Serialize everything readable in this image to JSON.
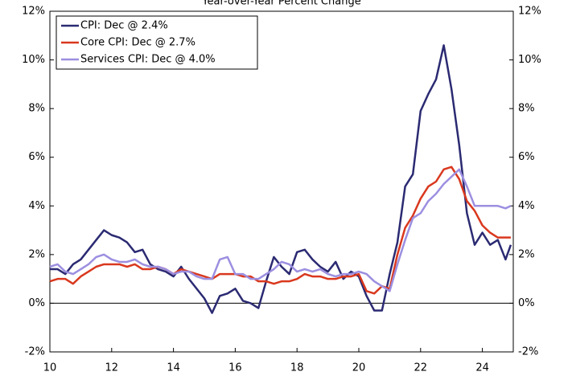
{
  "chart_data": {
    "type": "line",
    "title": "Year-over-Year Percent Change",
    "x": [
      10,
      10.25,
      10.5,
      10.75,
      11,
      11.25,
      11.5,
      11.75,
      12,
      12.25,
      12.5,
      12.75,
      13,
      13.25,
      13.5,
      13.75,
      14,
      14.25,
      14.5,
      14.75,
      15,
      15.25,
      15.5,
      15.75,
      16,
      16.25,
      16.5,
      16.75,
      17,
      17.25,
      17.5,
      17.75,
      18,
      18.25,
      18.5,
      18.75,
      19,
      19.25,
      19.5,
      19.75,
      20,
      20.25,
      20.5,
      20.75,
      21,
      21.25,
      21.5,
      21.75,
      22,
      22.25,
      22.5,
      22.75,
      23,
      23.25,
      23.5,
      23.75,
      24,
      24.25,
      24.5,
      24.75,
      24.92
    ],
    "series": [
      {
        "name": "CPI: Dec @ 2.4%",
        "color": "#2b2a72",
        "values": [
          1.4,
          1.4,
          1.2,
          1.6,
          1.8,
          2.2,
          2.6,
          3.0,
          2.8,
          2.7,
          2.5,
          2.1,
          2.2,
          1.6,
          1.4,
          1.3,
          1.1,
          1.5,
          1.0,
          0.6,
          0.2,
          -0.4,
          0.3,
          0.4,
          0.6,
          0.1,
          0.0,
          -0.2,
          0.9,
          1.9,
          1.5,
          1.2,
          2.1,
          2.2,
          1.8,
          1.5,
          1.3,
          1.7,
          1.0,
          1.3,
          1.1,
          0.3,
          -0.3,
          -0.3,
          1.2,
          2.5,
          4.8,
          5.3,
          7.9,
          8.6,
          9.2,
          10.6,
          8.8,
          6.5,
          3.7,
          2.4,
          2.9,
          2.4,
          2.6,
          1.8,
          2.4
        ]
      },
      {
        "name": "Core CPI: Dec @ 2.7%",
        "color": "#d9381e",
        "values": [
          0.9,
          1.0,
          1.0,
          0.8,
          1.1,
          1.3,
          1.5,
          1.6,
          1.6,
          1.6,
          1.5,
          1.6,
          1.4,
          1.4,
          1.5,
          1.4,
          1.2,
          1.4,
          1.3,
          1.2,
          1.1,
          1.0,
          1.2,
          1.2,
          1.2,
          1.1,
          1.1,
          0.9,
          0.9,
          0.8,
          0.9,
          0.9,
          1.0,
          1.2,
          1.1,
          1.1,
          1.0,
          1.0,
          1.1,
          1.1,
          1.2,
          0.5,
          0.4,
          0.7,
          0.6,
          2.0,
          3.1,
          3.6,
          4.3,
          4.8,
          5.0,
          5.5,
          5.6,
          5.1,
          4.2,
          3.8,
          3.2,
          2.9,
          2.7,
          2.7,
          2.7
        ]
      },
      {
        "name": "Services CPI: Dec @ 4.0%",
        "color": "#9c8fe0",
        "values": [
          1.5,
          1.6,
          1.3,
          1.2,
          1.4,
          1.6,
          1.9,
          2.0,
          1.8,
          1.7,
          1.7,
          1.8,
          1.6,
          1.5,
          1.5,
          1.4,
          1.2,
          1.3,
          1.3,
          1.1,
          1.0,
          1.0,
          1.8,
          1.9,
          1.2,
          1.2,
          1.0,
          1.0,
          1.2,
          1.4,
          1.7,
          1.6,
          1.3,
          1.4,
          1.3,
          1.4,
          1.2,
          1.1,
          1.2,
          1.2,
          1.3,
          1.2,
          0.9,
          0.7,
          0.5,
          1.6,
          2.6,
          3.5,
          3.7,
          4.2,
          4.5,
          4.9,
          5.2,
          5.5,
          4.8,
          4.0,
          4.0,
          4.0,
          4.0,
          3.9,
          4.0
        ]
      }
    ],
    "xlim": [
      10,
      25
    ],
    "xticks": [
      10,
      12,
      14,
      16,
      18,
      20,
      22,
      24
    ],
    "ylim": [
      -2,
      12
    ],
    "yticks": [
      {
        "value": -2,
        "label": "-2%"
      },
      {
        "value": 0,
        "label": "0%"
      },
      {
        "value": 2,
        "label": "2%"
      },
      {
        "value": 4,
        "label": "4%"
      },
      {
        "value": 6,
        "label": "6%"
      },
      {
        "value": 8,
        "label": "8%"
      },
      {
        "value": 10,
        "label": "10%"
      },
      {
        "value": 12,
        "label": "12%"
      }
    ],
    "y2lim": [
      -2,
      12
    ],
    "y2ticks": [
      {
        "value": -2,
        "label": "-2%"
      },
      {
        "value": 0,
        "label": "0%"
      },
      {
        "value": 2,
        "label": "2%"
      },
      {
        "value": 4,
        "label": "4%"
      },
      {
        "value": 6,
        "label": "6%"
      },
      {
        "value": 8,
        "label": "8%"
      },
      {
        "value": 10,
        "label": "10%"
      },
      {
        "value": 12,
        "label": "12%"
      }
    ],
    "legend": "upper-left"
  }
}
